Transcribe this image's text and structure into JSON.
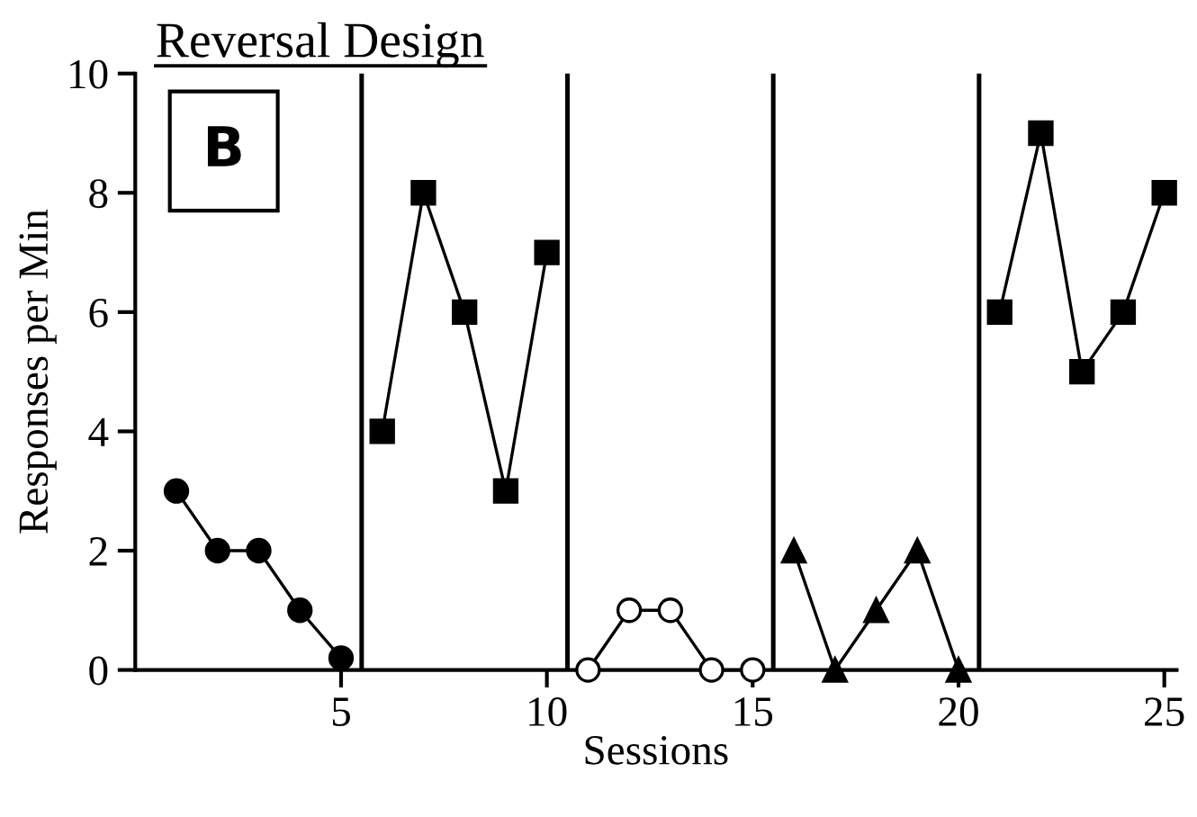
{
  "chart_data": {
    "type": "line",
    "title": "Reversal Design",
    "xlabel": "Sessions",
    "ylabel": "Responses per Min",
    "annotations": [
      "B"
    ],
    "series": [
      {
        "x": [
          1,
          2,
          3,
          4,
          5
        ],
        "values": [
          3,
          2,
          2,
          1,
          0.2
        ],
        "color": "#000000",
        "marker": "circle"
      },
      {
        "x": [
          6,
          7,
          8,
          9,
          10
        ],
        "values": [
          4,
          8,
          6,
          3,
          7
        ],
        "color": "#000000",
        "marker": "square"
      },
      {
        "x": [
          11,
          12,
          13,
          14,
          15
        ],
        "values": [
          0,
          1,
          1,
          0,
          0
        ],
        "color": "#ffffff",
        "marker": "circle"
      },
      {
        "x": [
          16,
          17,
          18,
          19,
          20
        ],
        "values": [
          2,
          0,
          1,
          2,
          0
        ],
        "color": "#000000",
        "marker": "triangle"
      },
      {
        "x": [
          21,
          22,
          23,
          24,
          25
        ],
        "values": [
          6,
          9,
          5,
          6,
          8
        ],
        "color": "#000000",
        "marker": "square"
      }
    ],
    "ref_lines": [
      {
        "axis": "x",
        "value": 5.5,
        "color": "#000000"
      },
      {
        "axis": "x",
        "value": 10.5,
        "color": "#000000"
      },
      {
        "axis": "x",
        "value": 15.5,
        "color": "#000000"
      },
      {
        "axis": "x",
        "value": 20.5,
        "color": "#000000"
      }
    ],
    "xlim": [
      0,
      25.3
    ],
    "xticks": [
      5,
      10,
      15,
      20,
      25
    ],
    "ylim": [
      0,
      10
    ],
    "yticks": [
      0,
      2,
      4,
      6,
      8,
      10
    ],
    "grid": false,
    "legend": false
  }
}
